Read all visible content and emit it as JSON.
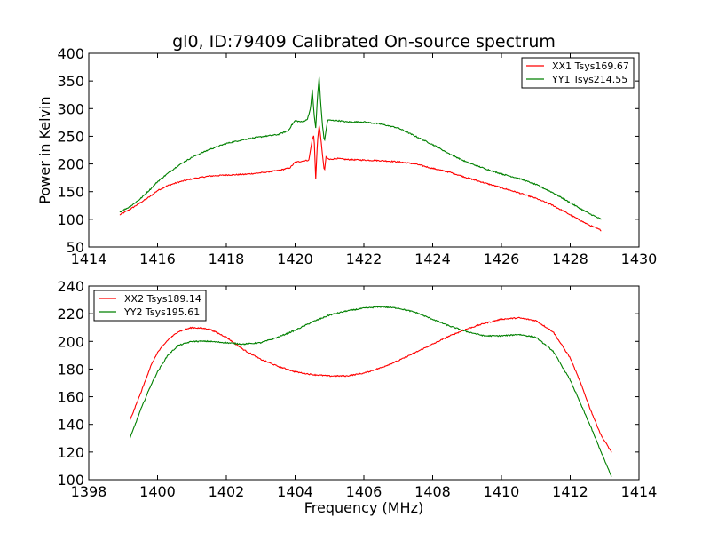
{
  "figure": {
    "title": "gl0, ID:79409 Calibrated On-source spectrum",
    "xlabel": "Frequency (MHz)"
  },
  "chart_data": [
    {
      "type": "line",
      "title": "gl0, ID:79409 Calibrated On-source spectrum",
      "xlabel": "",
      "ylabel": "Power in Kelvin",
      "xlim": [
        1414,
        1430
      ],
      "ylim": [
        50,
        400
      ],
      "xticks": [
        "1414",
        "1416",
        "1418",
        "1420",
        "1422",
        "1424",
        "1426",
        "1428",
        "1430"
      ],
      "yticks": [
        "50",
        "100",
        "150",
        "200",
        "250",
        "300",
        "350",
        "400"
      ],
      "legend_position": "top-right",
      "series": [
        {
          "name": "XX1 Tsys169.67",
          "color": "#ff0000",
          "points": [
            [
              1414.9,
              108
            ],
            [
              1415.2,
              118
            ],
            [
              1415.5,
              130
            ],
            [
              1415.8,
              142
            ],
            [
              1416.0,
              152
            ],
            [
              1416.3,
              161
            ],
            [
              1416.6,
              167
            ],
            [
              1417.0,
              173
            ],
            [
              1417.5,
              178
            ],
            [
              1418.0,
              180
            ],
            [
              1418.5,
              181
            ],
            [
              1419.0,
              184
            ],
            [
              1419.5,
              188
            ],
            [
              1419.85,
              193
            ],
            [
              1420.0,
              203
            ],
            [
              1420.2,
              205
            ],
            [
              1420.4,
              207
            ],
            [
              1420.5,
              245
            ],
            [
              1420.55,
              252
            ],
            [
              1420.6,
              173
            ],
            [
              1420.65,
              240
            ],
            [
              1420.7,
              270
            ],
            [
              1420.75,
              245
            ],
            [
              1420.8,
              215
            ],
            [
              1420.85,
              185
            ],
            [
              1420.9,
              212
            ],
            [
              1421.0,
              208
            ],
            [
              1421.2,
              210
            ],
            [
              1421.5,
              208
            ],
            [
              1422.0,
              207
            ],
            [
              1422.5,
              206
            ],
            [
              1423.0,
              204
            ],
            [
              1423.5,
              200
            ],
            [
              1424.0,
              192
            ],
            [
              1424.5,
              185
            ],
            [
              1425.0,
              175
            ],
            [
              1425.5,
              166
            ],
            [
              1426.0,
              157
            ],
            [
              1426.5,
              148
            ],
            [
              1427.0,
              138
            ],
            [
              1427.5,
              125
            ],
            [
              1428.0,
              108
            ],
            [
              1428.5,
              91
            ],
            [
              1428.9,
              80
            ]
          ]
        },
        {
          "name": "YY1 Tsys214.55",
          "color": "#008000",
          "points": [
            [
              1414.9,
              113
            ],
            [
              1415.2,
              123
            ],
            [
              1415.5,
              137
            ],
            [
              1415.8,
              155
            ],
            [
              1416.0,
              168
            ],
            [
              1416.3,
              183
            ],
            [
              1416.6,
              197
            ],
            [
              1417.0,
              212
            ],
            [
              1417.5,
              226
            ],
            [
              1418.0,
              237
            ],
            [
              1418.5,
              244
            ],
            [
              1419.0,
              249
            ],
            [
              1419.5,
              253
            ],
            [
              1419.8,
              260
            ],
            [
              1419.9,
              270
            ],
            [
              1420.0,
              278
            ],
            [
              1420.2,
              276
            ],
            [
              1420.35,
              280
            ],
            [
              1420.45,
              300
            ],
            [
              1420.5,
              335
            ],
            [
              1420.55,
              290
            ],
            [
              1420.6,
              265
            ],
            [
              1420.65,
              320
            ],
            [
              1420.7,
              357
            ],
            [
              1420.75,
              305
            ],
            [
              1420.8,
              268
            ],
            [
              1420.85,
              240
            ],
            [
              1420.95,
              280
            ],
            [
              1421.0,
              279
            ],
            [
              1421.3,
              278
            ],
            [
              1421.5,
              276
            ],
            [
              1422.0,
              276
            ],
            [
              1422.5,
              272
            ],
            [
              1423.0,
              265
            ],
            [
              1423.5,
              250
            ],
            [
              1424.0,
              235
            ],
            [
              1424.5,
              218
            ],
            [
              1425.0,
              203
            ],
            [
              1425.5,
              192
            ],
            [
              1426.0,
              182
            ],
            [
              1426.5,
              174
            ],
            [
              1427.0,
              163
            ],
            [
              1427.5,
              148
            ],
            [
              1428.0,
              130
            ],
            [
              1428.5,
              112
            ],
            [
              1428.9,
              100
            ]
          ]
        }
      ]
    },
    {
      "type": "line",
      "title": "",
      "xlabel": "Frequency (MHz)",
      "ylabel": "",
      "xlim": [
        1398,
        1414
      ],
      "ylim": [
        100,
        240
      ],
      "xticks": [
        "1398",
        "1400",
        "1402",
        "1404",
        "1406",
        "1408",
        "1410",
        "1412",
        "1414"
      ],
      "yticks": [
        "100",
        "120",
        "140",
        "160",
        "180",
        "200",
        "220",
        "240"
      ],
      "legend_position": "top-left",
      "series": [
        {
          "name": "XX2 Tsys189.14",
          "color": "#ff0000",
          "points": [
            [
              1399.2,
              143
            ],
            [
              1399.5,
              162
            ],
            [
              1399.8,
              182
            ],
            [
              1400.0,
              192
            ],
            [
              1400.3,
              201
            ],
            [
              1400.6,
              207
            ],
            [
              1401.0,
              210
            ],
            [
              1401.5,
              209
            ],
            [
              1402.0,
              203
            ],
            [
              1402.5,
              194
            ],
            [
              1403.0,
              187
            ],
            [
              1403.5,
              182
            ],
            [
              1404.0,
              178
            ],
            [
              1404.5,
              176
            ],
            [
              1405.0,
              175
            ],
            [
              1405.5,
              175
            ],
            [
              1406.0,
              177
            ],
            [
              1406.5,
              181
            ],
            [
              1407.0,
              186
            ],
            [
              1407.5,
              192
            ],
            [
              1408.0,
              198
            ],
            [
              1408.5,
              204
            ],
            [
              1409.0,
              209
            ],
            [
              1409.5,
              213
            ],
            [
              1410.0,
              216
            ],
            [
              1410.5,
              217
            ],
            [
              1411.0,
              215
            ],
            [
              1411.5,
              207
            ],
            [
              1412.0,
              188
            ],
            [
              1412.3,
              170
            ],
            [
              1412.6,
              150
            ],
            [
              1412.9,
              132
            ],
            [
              1413.2,
              120
            ]
          ]
        },
        {
          "name": "YY2 Tsys195.61",
          "color": "#008000",
          "points": [
            [
              1399.2,
              130
            ],
            [
              1399.5,
              150
            ],
            [
              1399.8,
              168
            ],
            [
              1400.0,
              178
            ],
            [
              1400.3,
              190
            ],
            [
              1400.6,
              197
            ],
            [
              1401.0,
              200
            ],
            [
              1401.5,
              200
            ],
            [
              1402.0,
              199
            ],
            [
              1402.5,
              198
            ],
            [
              1403.0,
              199
            ],
            [
              1403.5,
              203
            ],
            [
              1404.0,
              208
            ],
            [
              1404.5,
              214
            ],
            [
              1405.0,
              219
            ],
            [
              1405.5,
              222
            ],
            [
              1406.0,
              224
            ],
            [
              1406.5,
              225
            ],
            [
              1407.0,
              224
            ],
            [
              1407.5,
              221
            ],
            [
              1408.0,
              216
            ],
            [
              1408.5,
              211
            ],
            [
              1409.0,
              207
            ],
            [
              1409.5,
              204
            ],
            [
              1410.0,
              204
            ],
            [
              1410.5,
              205
            ],
            [
              1411.0,
              203
            ],
            [
              1411.5,
              193
            ],
            [
              1412.0,
              172
            ],
            [
              1412.3,
              155
            ],
            [
              1412.6,
              138
            ],
            [
              1412.9,
              120
            ],
            [
              1413.2,
              102
            ]
          ]
        }
      ]
    }
  ]
}
